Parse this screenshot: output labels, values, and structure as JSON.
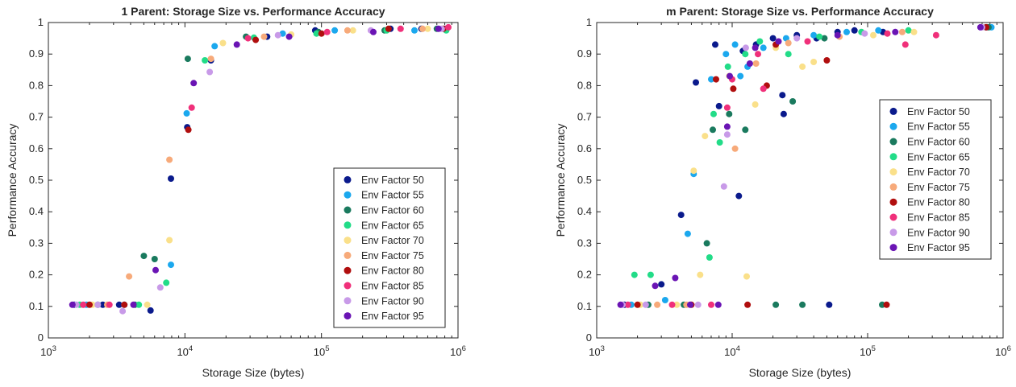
{
  "chart_data": [
    {
      "type": "scatter",
      "title": "1 Parent: Storage Size vs. Performance Accuracy",
      "xlabel": "Storage Size (bytes)",
      "ylabel": "Performance Accuracy",
      "xscale": "log",
      "xlim": [
        1000,
        1000000
      ],
      "ylim": [
        0,
        1
      ],
      "yticks": [
        "0",
        "0.1",
        "0.2",
        "0.3",
        "0.4",
        "0.5",
        "0.6",
        "0.7",
        "0.8",
        "0.9",
        "1"
      ],
      "xticks": [
        {
          "base": "10",
          "exp": "3"
        },
        {
          "base": "10",
          "exp": "4"
        },
        {
          "base": "10",
          "exp": "5"
        },
        {
          "base": "10",
          "exp": "6"
        }
      ],
      "grid": false,
      "legend_position": "bottom-right",
      "series": [
        {
          "name": "Env Factor 50",
          "color": "#0a1a8c",
          "points": [
            [
              1550,
              0.105
            ],
            [
              2500,
              0.105
            ],
            [
              3300,
              0.105
            ],
            [
              5600,
              0.087
            ],
            [
              7900,
              0.505
            ],
            [
              10400,
              0.668
            ],
            [
              15500,
              0.88
            ],
            [
              40000,
              0.955
            ],
            [
              90000,
              0.975
            ],
            [
              320000,
              0.98
            ],
            [
              540000,
              0.98
            ],
            [
              800000,
              0.98
            ]
          ]
        },
        {
          "name": "Env Factor 55",
          "color": "#1ba8ee",
          "points": [
            [
              1900,
              0.105
            ],
            [
              3600,
              0.105
            ],
            [
              7900,
              0.232
            ],
            [
              10300,
              0.712
            ],
            [
              16500,
              0.925
            ],
            [
              52000,
              0.965
            ],
            [
              125000,
              0.975
            ],
            [
              480000,
              0.975
            ]
          ]
        },
        {
          "name": "Env Factor 60",
          "color": "#1a7a5e",
          "points": [
            [
              2300,
              0.105
            ],
            [
              4300,
              0.105
            ],
            [
              5000,
              0.26
            ],
            [
              6000,
              0.25
            ],
            [
              10500,
              0.885
            ],
            [
              28000,
              0.955
            ],
            [
              95000,
              0.97
            ],
            [
              290000,
              0.975
            ],
            [
              700000,
              0.98
            ]
          ]
        },
        {
          "name": "Env Factor 65",
          "color": "#22dc88",
          "points": [
            [
              1700,
              0.105
            ],
            [
              4600,
              0.105
            ],
            [
              7300,
              0.175
            ],
            [
              14000,
              0.88
            ],
            [
              32000,
              0.952
            ],
            [
              92000,
              0.965
            ],
            [
              300000,
              0.975
            ],
            [
              820000,
              0.975
            ]
          ]
        },
        {
          "name": "Env Factor 70",
          "color": "#fae08a",
          "points": [
            [
              2100,
              0.105
            ],
            [
              5300,
              0.105
            ],
            [
              7700,
              0.31
            ],
            [
              19000,
              0.935
            ],
            [
              60000,
              0.962
            ],
            [
              170000,
              0.975
            ],
            [
              600000,
              0.98
            ]
          ]
        },
        {
          "name": "Env Factor 75",
          "color": "#f7aa7a",
          "points": [
            [
              2700,
              0.105
            ],
            [
              3900,
              0.195
            ],
            [
              7700,
              0.565
            ],
            [
              15500,
              0.885
            ],
            [
              38000,
              0.955
            ],
            [
              155000,
              0.975
            ],
            [
              550000,
              0.98
            ]
          ]
        },
        {
          "name": "Env Factor 80",
          "color": "#b00e0e",
          "points": [
            [
              2000,
              0.105
            ],
            [
              3600,
              0.105
            ],
            [
              10600,
              0.66
            ],
            [
              33000,
              0.945
            ],
            [
              100000,
              0.965
            ],
            [
              310000,
              0.98
            ],
            [
              780000,
              0.98
            ]
          ]
        },
        {
          "name": "Env Factor 85",
          "color": "#f0307a",
          "points": [
            [
              1800,
              0.105
            ],
            [
              2800,
              0.105
            ],
            [
              11200,
              0.73
            ],
            [
              29000,
              0.95
            ],
            [
              110000,
              0.97
            ],
            [
              380000,
              0.98
            ],
            [
              850000,
              0.985
            ]
          ]
        },
        {
          "name": "Env Factor 90",
          "color": "#c89ae8",
          "points": [
            [
              1600,
              0.105
            ],
            [
              2300,
              0.105
            ],
            [
              3500,
              0.085
            ],
            [
              6600,
              0.16
            ],
            [
              15200,
              0.843
            ],
            [
              48000,
              0.96
            ],
            [
              230000,
              0.975
            ],
            [
              760000,
              0.98
            ]
          ]
        },
        {
          "name": "Env Factor 95",
          "color": "#6a14b4",
          "points": [
            [
              1500,
              0.105
            ],
            [
              4200,
              0.105
            ],
            [
              6100,
              0.215
            ],
            [
              11600,
              0.808
            ],
            [
              24000,
              0.93
            ],
            [
              58000,
              0.955
            ],
            [
              240000,
              0.97
            ],
            [
              720000,
              0.98
            ]
          ]
        }
      ]
    },
    {
      "type": "scatter",
      "title": "m Parent: Storage Size vs. Performance Accuracy",
      "xlabel": "Storage Size (bytes)",
      "ylabel": "Performance Accuracy",
      "xscale": "log",
      "xlim": [
        1000,
        1000000
      ],
      "ylim": [
        0,
        1
      ],
      "yticks": [
        "0",
        "0.1",
        "0.2",
        "0.3",
        "0.4",
        "0.5",
        "0.6",
        "0.7",
        "0.8",
        "0.9",
        "1"
      ],
      "xticks": [
        {
          "base": "10",
          "exp": "3"
        },
        {
          "base": "10",
          "exp": "4"
        },
        {
          "base": "10",
          "exp": "5"
        },
        {
          "base": "10",
          "exp": "6"
        }
      ],
      "grid": false,
      "legend_position": "right",
      "series": [
        {
          "name": "Env Factor 50",
          "color": "#0a1a8c",
          "points": [
            [
              1600,
              0.105
            ],
            [
              3000,
              0.17
            ],
            [
              4200,
              0.39
            ],
            [
              5400,
              0.81
            ],
            [
              7500,
              0.93
            ],
            [
              8000,
              0.735
            ],
            [
              11200,
              0.45
            ],
            [
              12000,
              0.91
            ],
            [
              15000,
              0.93
            ],
            [
              20000,
              0.95
            ],
            [
              23500,
              0.77
            ],
            [
              24000,
              0.71
            ],
            [
              30000,
              0.96
            ],
            [
              42000,
              0.95
            ],
            [
              52000,
              0.105
            ],
            [
              60000,
              0.97
            ],
            [
              80000,
              0.975
            ],
            [
              130000,
              0.97
            ],
            [
              750000,
              0.985
            ]
          ]
        },
        {
          "name": "Env Factor 55",
          "color": "#1ba8ee",
          "points": [
            [
              1800,
              0.105
            ],
            [
              3200,
              0.12
            ],
            [
              4700,
              0.33
            ],
            [
              5200,
              0.52
            ],
            [
              7000,
              0.82
            ],
            [
              9000,
              0.9
            ],
            [
              10500,
              0.93
            ],
            [
              11500,
              0.83
            ],
            [
              13000,
              0.86
            ],
            [
              17000,
              0.92
            ],
            [
              25000,
              0.95
            ],
            [
              40000,
              0.96
            ],
            [
              70000,
              0.97
            ],
            [
              120000,
              0.975
            ],
            [
              820000,
              0.985
            ]
          ]
        },
        {
          "name": "Env Factor 60",
          "color": "#1a7a5e",
          "points": [
            [
              2400,
              0.105
            ],
            [
              4400,
              0.105
            ],
            [
              6500,
              0.3
            ],
            [
              7200,
              0.66
            ],
            [
              9500,
              0.71
            ],
            [
              12500,
              0.66
            ],
            [
              21000,
              0.105
            ],
            [
              28000,
              0.75
            ],
            [
              33000,
              0.105
            ],
            [
              48000,
              0.95
            ],
            [
              128000,
              0.105
            ],
            [
              780000,
              0.985
            ]
          ]
        },
        {
          "name": "Env Factor 65",
          "color": "#22dc88",
          "points": [
            [
              1900,
              0.2
            ],
            [
              2500,
              0.2
            ],
            [
              6800,
              0.255
            ],
            [
              7300,
              0.71
            ],
            [
              8100,
              0.62
            ],
            [
              9300,
              0.86
            ],
            [
              12500,
              0.9
            ],
            [
              16000,
              0.94
            ],
            [
              26000,
              0.9
            ],
            [
              44000,
              0.955
            ],
            [
              90000,
              0.97
            ],
            [
              200000,
              0.975
            ]
          ]
        },
        {
          "name": "Env Factor 70",
          "color": "#fae08a",
          "points": [
            [
              2100,
              0.105
            ],
            [
              3900,
              0.105
            ],
            [
              5200,
              0.53
            ],
            [
              5800,
              0.2
            ],
            [
              6300,
              0.64
            ],
            [
              9500,
              0.83
            ],
            [
              12800,
              0.195
            ],
            [
              14800,
              0.74
            ],
            [
              21000,
              0.92
            ],
            [
              33000,
              0.86
            ],
            [
              40000,
              0.875
            ],
            [
              110000,
              0.96
            ],
            [
              220000,
              0.97
            ]
          ]
        },
        {
          "name": "Env Factor 75",
          "color": "#f7aa7a",
          "points": [
            [
              2800,
              0.105
            ],
            [
              4600,
              0.105
            ],
            [
              10500,
              0.6
            ],
            [
              15000,
              0.87
            ],
            [
              26000,
              0.935
            ],
            [
              62000,
              0.955
            ],
            [
              180000,
              0.97
            ]
          ]
        },
        {
          "name": "Env Factor 80",
          "color": "#b00e0e",
          "points": [
            [
              2000,
              0.105
            ],
            [
              5000,
              0.105
            ],
            [
              7600,
              0.82
            ],
            [
              10200,
              0.79
            ],
            [
              13000,
              0.105
            ],
            [
              18000,
              0.8
            ],
            [
              21000,
              0.93
            ],
            [
              50000,
              0.88
            ],
            [
              138000,
              0.105
            ],
            [
              750000,
              0.985
            ]
          ]
        },
        {
          "name": "Env Factor 85",
          "color": "#f0307a",
          "points": [
            [
              1700,
              0.105
            ],
            [
              3600,
              0.105
            ],
            [
              7000,
              0.105
            ],
            [
              9200,
              0.73
            ],
            [
              10000,
              0.82
            ],
            [
              15500,
              0.9
            ],
            [
              17000,
              0.79
            ],
            [
              36000,
              0.94
            ],
            [
              140000,
              0.965
            ],
            [
              190000,
              0.93
            ],
            [
              320000,
              0.96
            ]
          ]
        },
        {
          "name": "Env Factor 90",
          "color": "#c89ae8",
          "points": [
            [
              1550,
              0.105
            ],
            [
              2300,
              0.105
            ],
            [
              5600,
              0.105
            ],
            [
              8700,
              0.48
            ],
            [
              9200,
              0.645
            ],
            [
              12600,
              0.92
            ],
            [
              30000,
              0.95
            ],
            [
              95000,
              0.965
            ],
            [
              700000,
              0.985
            ]
          ]
        },
        {
          "name": "Env Factor 95",
          "color": "#6a14b4",
          "points": [
            [
              1500,
              0.105
            ],
            [
              2700,
              0.165
            ],
            [
              3800,
              0.19
            ],
            [
              4900,
              0.105
            ],
            [
              7900,
              0.105
            ],
            [
              9200,
              0.67
            ],
            [
              9600,
              0.83
            ],
            [
              13500,
              0.87
            ],
            [
              14800,
              0.92
            ],
            [
              22000,
              0.94
            ],
            [
              60000,
              0.96
            ],
            [
              160000,
              0.97
            ],
            [
              680000,
              0.985
            ]
          ]
        }
      ]
    }
  ]
}
